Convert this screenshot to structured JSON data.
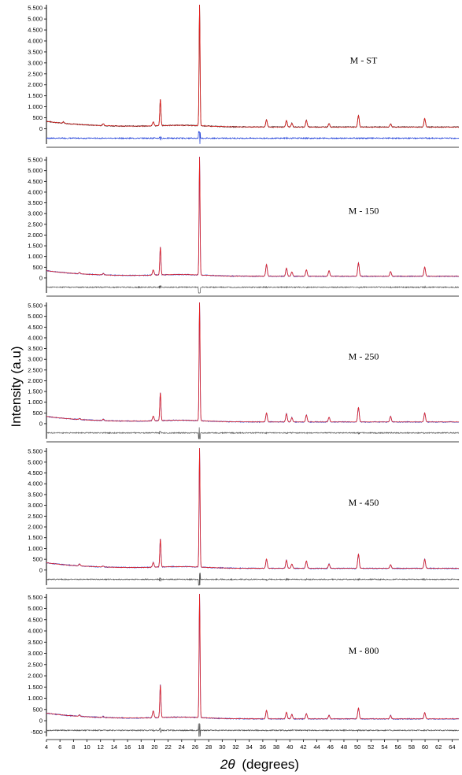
{
  "chart_data": {
    "type": "line",
    "xlabel_symbol": "2θ",
    "xlabel_unit": "(degrees)",
    "ylabel": "Intensity (a.u)",
    "xlim": [
      4,
      65
    ],
    "x_ticks": [
      4,
      6,
      8,
      10,
      12,
      14,
      16,
      18,
      20,
      22,
      24,
      26,
      28,
      30,
      32,
      34,
      36,
      38,
      40,
      42,
      44,
      46,
      48,
      50,
      52,
      54,
      56,
      58,
      60,
      62,
      64
    ],
    "y_ticks": [
      -500,
      0,
      500,
      1000,
      1500,
      2000,
      2500,
      3000,
      3500,
      4000,
      4500,
      5000,
      5500
    ],
    "y_tick_labels": [
      "-500",
      "0",
      "500",
      "1.000",
      "1.500",
      "2.000",
      "2.500",
      "3.000",
      "3.500",
      "4.000",
      "4.500",
      "5.000",
      "5.500"
    ],
    "ylim": [
      -700,
      5650
    ],
    "grid": false,
    "panels": [
      {
        "label": "M - ST",
        "difference_color": "#1f3fd8",
        "observed_color": "#111111",
        "calculated_color": "#e8201e",
        "peaks": [
          {
            "x": 6.5,
            "y": 60
          },
          {
            "x": 12.4,
            "y": 80
          },
          {
            "x": 19.8,
            "y": 180
          },
          {
            "x": 20.85,
            "y": 1200
          },
          {
            "x": 26.65,
            "y": 5600
          },
          {
            "x": 36.55,
            "y": 330
          },
          {
            "x": 39.5,
            "y": 300
          },
          {
            "x": 40.3,
            "y": 170
          },
          {
            "x": 42.45,
            "y": 300
          },
          {
            "x": 45.8,
            "y": 150
          },
          {
            "x": 50.15,
            "y": 520
          },
          {
            "x": 54.9,
            "y": 140
          },
          {
            "x": 59.95,
            "y": 390
          }
        ]
      },
      {
        "label": "M - 150",
        "difference_color": "#555555",
        "observed_color": "#1f3fd8",
        "calculated_color": "#e8201e",
        "peaks": [
          {
            "x": 8.9,
            "y": 60
          },
          {
            "x": 12.4,
            "y": 60
          },
          {
            "x": 19.8,
            "y": 240
          },
          {
            "x": 20.85,
            "y": 1300
          },
          {
            "x": 26.65,
            "y": 5500
          },
          {
            "x": 36.55,
            "y": 550
          },
          {
            "x": 39.5,
            "y": 380
          },
          {
            "x": 40.3,
            "y": 200
          },
          {
            "x": 42.45,
            "y": 300
          },
          {
            "x": 45.8,
            "y": 260
          },
          {
            "x": 50.15,
            "y": 620
          },
          {
            "x": 54.9,
            "y": 220
          },
          {
            "x": 59.95,
            "y": 430
          }
        ]
      },
      {
        "label": "M - 250",
        "difference_color": "#555555",
        "observed_color": "#1f3fd8",
        "calculated_color": "#e8201e",
        "peaks": [
          {
            "x": 8.9,
            "y": 50
          },
          {
            "x": 12.4,
            "y": 60
          },
          {
            "x": 19.8,
            "y": 220
          },
          {
            "x": 20.85,
            "y": 1300
          },
          {
            "x": 26.65,
            "y": 5700
          },
          {
            "x": 36.55,
            "y": 420
          },
          {
            "x": 39.5,
            "y": 380
          },
          {
            "x": 40.3,
            "y": 200
          },
          {
            "x": 42.45,
            "y": 320
          },
          {
            "x": 45.8,
            "y": 220
          },
          {
            "x": 50.15,
            "y": 680
          },
          {
            "x": 54.9,
            "y": 260
          },
          {
            "x": 59.95,
            "y": 420
          }
        ]
      },
      {
        "label": "M - 450",
        "difference_color": "#555555",
        "observed_color": "#1f3fd8",
        "calculated_color": "#e8201e",
        "peaks": [
          {
            "x": 8.9,
            "y": 90
          },
          {
            "x": 12.4,
            "y": 40
          },
          {
            "x": 19.8,
            "y": 220
          },
          {
            "x": 20.85,
            "y": 1300
          },
          {
            "x": 26.65,
            "y": 5600
          },
          {
            "x": 36.55,
            "y": 430
          },
          {
            "x": 39.5,
            "y": 380
          },
          {
            "x": 40.3,
            "y": 200
          },
          {
            "x": 42.45,
            "y": 340
          },
          {
            "x": 45.8,
            "y": 200
          },
          {
            "x": 50.15,
            "y": 650
          },
          {
            "x": 54.9,
            "y": 170
          },
          {
            "x": 59.95,
            "y": 420
          }
        ]
      },
      {
        "label": "M - 800",
        "difference_color": "#555555",
        "observed_color": "#1f3fd8",
        "calculated_color": "#e8201e",
        "peaks": [
          {
            "x": 8.9,
            "y": 60
          },
          {
            "x": 12.4,
            "y": 40
          },
          {
            "x": 19.8,
            "y": 300
          },
          {
            "x": 20.85,
            "y": 1450
          },
          {
            "x": 26.65,
            "y": 5600
          },
          {
            "x": 36.55,
            "y": 380
          },
          {
            "x": 39.5,
            "y": 300
          },
          {
            "x": 40.3,
            "y": 200
          },
          {
            "x": 42.45,
            "y": 230
          },
          {
            "x": 45.8,
            "y": 160
          },
          {
            "x": 50.15,
            "y": 480
          },
          {
            "x": 54.9,
            "y": 150
          },
          {
            "x": 59.95,
            "y": 280
          }
        ]
      }
    ]
  }
}
